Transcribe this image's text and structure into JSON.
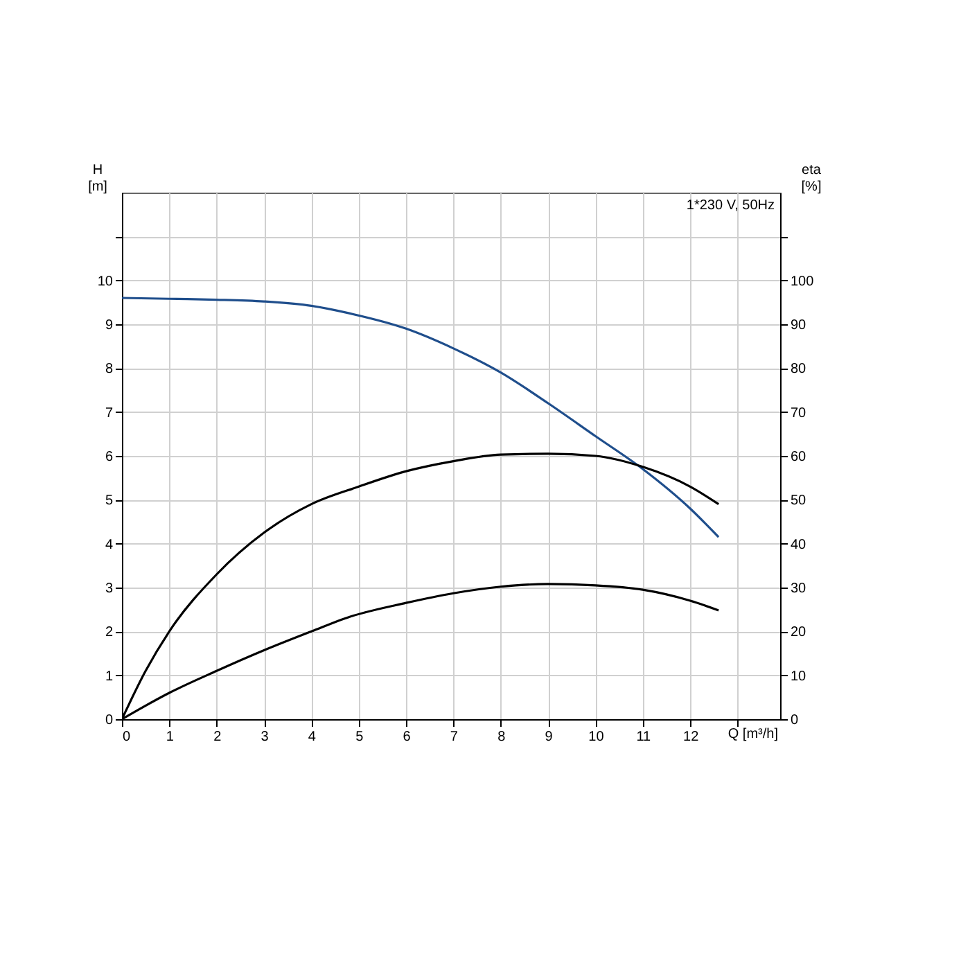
{
  "chart_data": {
    "type": "line",
    "xlabel": "Q [m³/h]",
    "ylabel": "H [m]",
    "y2label": "eta [%]",
    "annotations": [
      "1*230 V, 50Hz"
    ],
    "xlim": [
      0,
      13.9
    ],
    "xticks": [
      0,
      1,
      2,
      3,
      4,
      5,
      6,
      7,
      8,
      9,
      10,
      11,
      12,
      {
        "value": 13,
        "label": null
      }
    ],
    "ylim": [
      0,
      12
    ],
    "yticks": [
      0,
      1,
      2,
      3,
      4,
      5,
      6,
      7,
      8,
      9,
      10,
      {
        "value": 11,
        "label": null
      }
    ],
    "y2lim": [
      0,
      120
    ],
    "y2ticks": [
      0,
      10,
      20,
      30,
      40,
      50,
      60,
      70,
      80,
      90,
      100,
      {
        "value": 110,
        "label": null
      }
    ],
    "grid": true,
    "legend": false,
    "series": [
      {
        "color": "#1f4e8c",
        "x": [
          0,
          1,
          2,
          3,
          4,
          4.8,
          6,
          7,
          8,
          9,
          10,
          11,
          12,
          12.6
        ],
        "values": [
          9.6,
          9.58,
          9.56,
          9.52,
          9.42,
          9.25,
          8.9,
          8.45,
          7.9,
          7.2,
          6.45,
          5.7,
          4.8,
          4.15
        ]
      },
      {
        "color": "#000000",
        "axis": "y2",
        "x": [
          0,
          0.5,
          1,
          2,
          3,
          4,
          5,
          6,
          7,
          8,
          9,
          10,
          11,
          12,
          12.6
        ],
        "values": [
          0,
          11,
          20,
          33,
          42.5,
          49,
          53,
          56.5,
          58.8,
          60.3,
          60.5,
          60,
          57.5,
          53,
          49
        ]
      },
      {
        "color": "#000000",
        "axis": "y2",
        "x": [
          0,
          1,
          2,
          3,
          4,
          4.8,
          6,
          7,
          8,
          9,
          10,
          11,
          12,
          12.6
        ],
        "values": [
          0,
          6,
          11,
          15.7,
          20,
          23.3,
          26.5,
          28.7,
          30.2,
          30.8,
          30.5,
          29.5,
          27,
          24.8
        ]
      }
    ]
  }
}
